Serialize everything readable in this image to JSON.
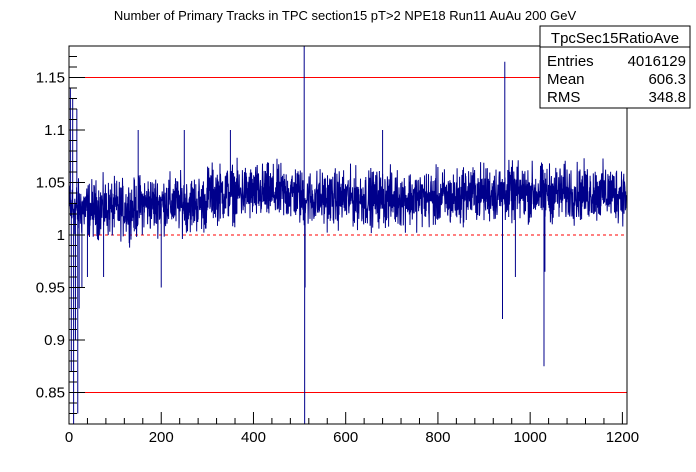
{
  "chart_data": {
    "type": "line",
    "title": "Number of Primary Tracks in TPC section15 pT>2 NPE18 Run11 AuAu 200 GeV",
    "xlabel": "",
    "ylabel": "",
    "xlim": [
      0,
      1210
    ],
    "ylim": [
      0.82,
      1.18
    ],
    "x_ticks": [
      0,
      200,
      400,
      600,
      800,
      1000,
      1200
    ],
    "x_tick_labels": [
      "0",
      "200",
      "400",
      "600",
      "800",
      "1000",
      "1200"
    ],
    "y_ticks": [
      0.85,
      0.9,
      0.95,
      1.0,
      1.05,
      1.1,
      1.15
    ],
    "y_tick_labels": [
      "0.85",
      "0.9",
      "0.95",
      "1",
      "1.05",
      "1.1",
      "1.15"
    ],
    "grid": false,
    "series": [
      {
        "name": "TpcSec15RatioAve",
        "color": "#00008b",
        "x_start": 1,
        "x_end": 1208,
        "baseline_segments": [
          {
            "x": [
              1,
              150
            ],
            "mean": 1.025
          },
          {
            "x": [
              150,
              300
            ],
            "mean": 1.03
          },
          {
            "x": [
              300,
              500
            ],
            "mean": 1.04
          },
          {
            "x": [
              500,
              700
            ],
            "mean": 1.035
          },
          {
            "x": [
              700,
              850
            ],
            "mean": 1.035
          },
          {
            "x": [
              850,
              1000
            ],
            "mean": 1.04
          },
          {
            "x": [
              1000,
              1208
            ],
            "mean": 1.04
          }
        ],
        "noise_amplitude": 0.02,
        "outliers": [
          {
            "x": 3,
            "y": 1.14
          },
          {
            "x": 5,
            "y": 0.87
          },
          {
            "x": 8,
            "y": 1.13
          },
          {
            "x": 10,
            "y": 0.82
          },
          {
            "x": 14,
            "y": 0.9
          },
          {
            "x": 17,
            "y": 1.12
          },
          {
            "x": 19,
            "y": 0.83
          },
          {
            "x": 22,
            "y": 0.93
          },
          {
            "x": 28,
            "y": 0.95
          },
          {
            "x": 40,
            "y": 0.96
          },
          {
            "x": 75,
            "y": 0.96
          },
          {
            "x": 150,
            "y": 1.1
          },
          {
            "x": 200,
            "y": 0.95
          },
          {
            "x": 250,
            "y": 1.1
          },
          {
            "x": 350,
            "y": 1.1
          },
          {
            "x": 510,
            "y": 1.18
          },
          {
            "x": 511,
            "y": 0.82
          },
          {
            "x": 512,
            "y": 0.95
          },
          {
            "x": 680,
            "y": 1.1
          },
          {
            "x": 940,
            "y": 0.92
          },
          {
            "x": 945,
            "y": 1.165
          },
          {
            "x": 968,
            "y": 0.96
          },
          {
            "x": 1030,
            "y": 0.875
          },
          {
            "x": 1032,
            "y": 0.965
          }
        ]
      }
    ],
    "reference_lines": [
      {
        "y": 1.15,
        "color": "#ff0000",
        "style": "solid"
      },
      {
        "y": 1.0,
        "color": "#ff0000",
        "style": "dashed"
      },
      {
        "y": 0.85,
        "color": "#ff0000",
        "style": "solid"
      }
    ],
    "stats_box": {
      "title": "TpcSec15RatioAve",
      "rows": [
        {
          "label": "Entries",
          "value": "4016129"
        },
        {
          "label": "Mean",
          "value": "606.3"
        },
        {
          "label": "RMS",
          "value": "348.8"
        }
      ],
      "placement": "top-right"
    }
  }
}
